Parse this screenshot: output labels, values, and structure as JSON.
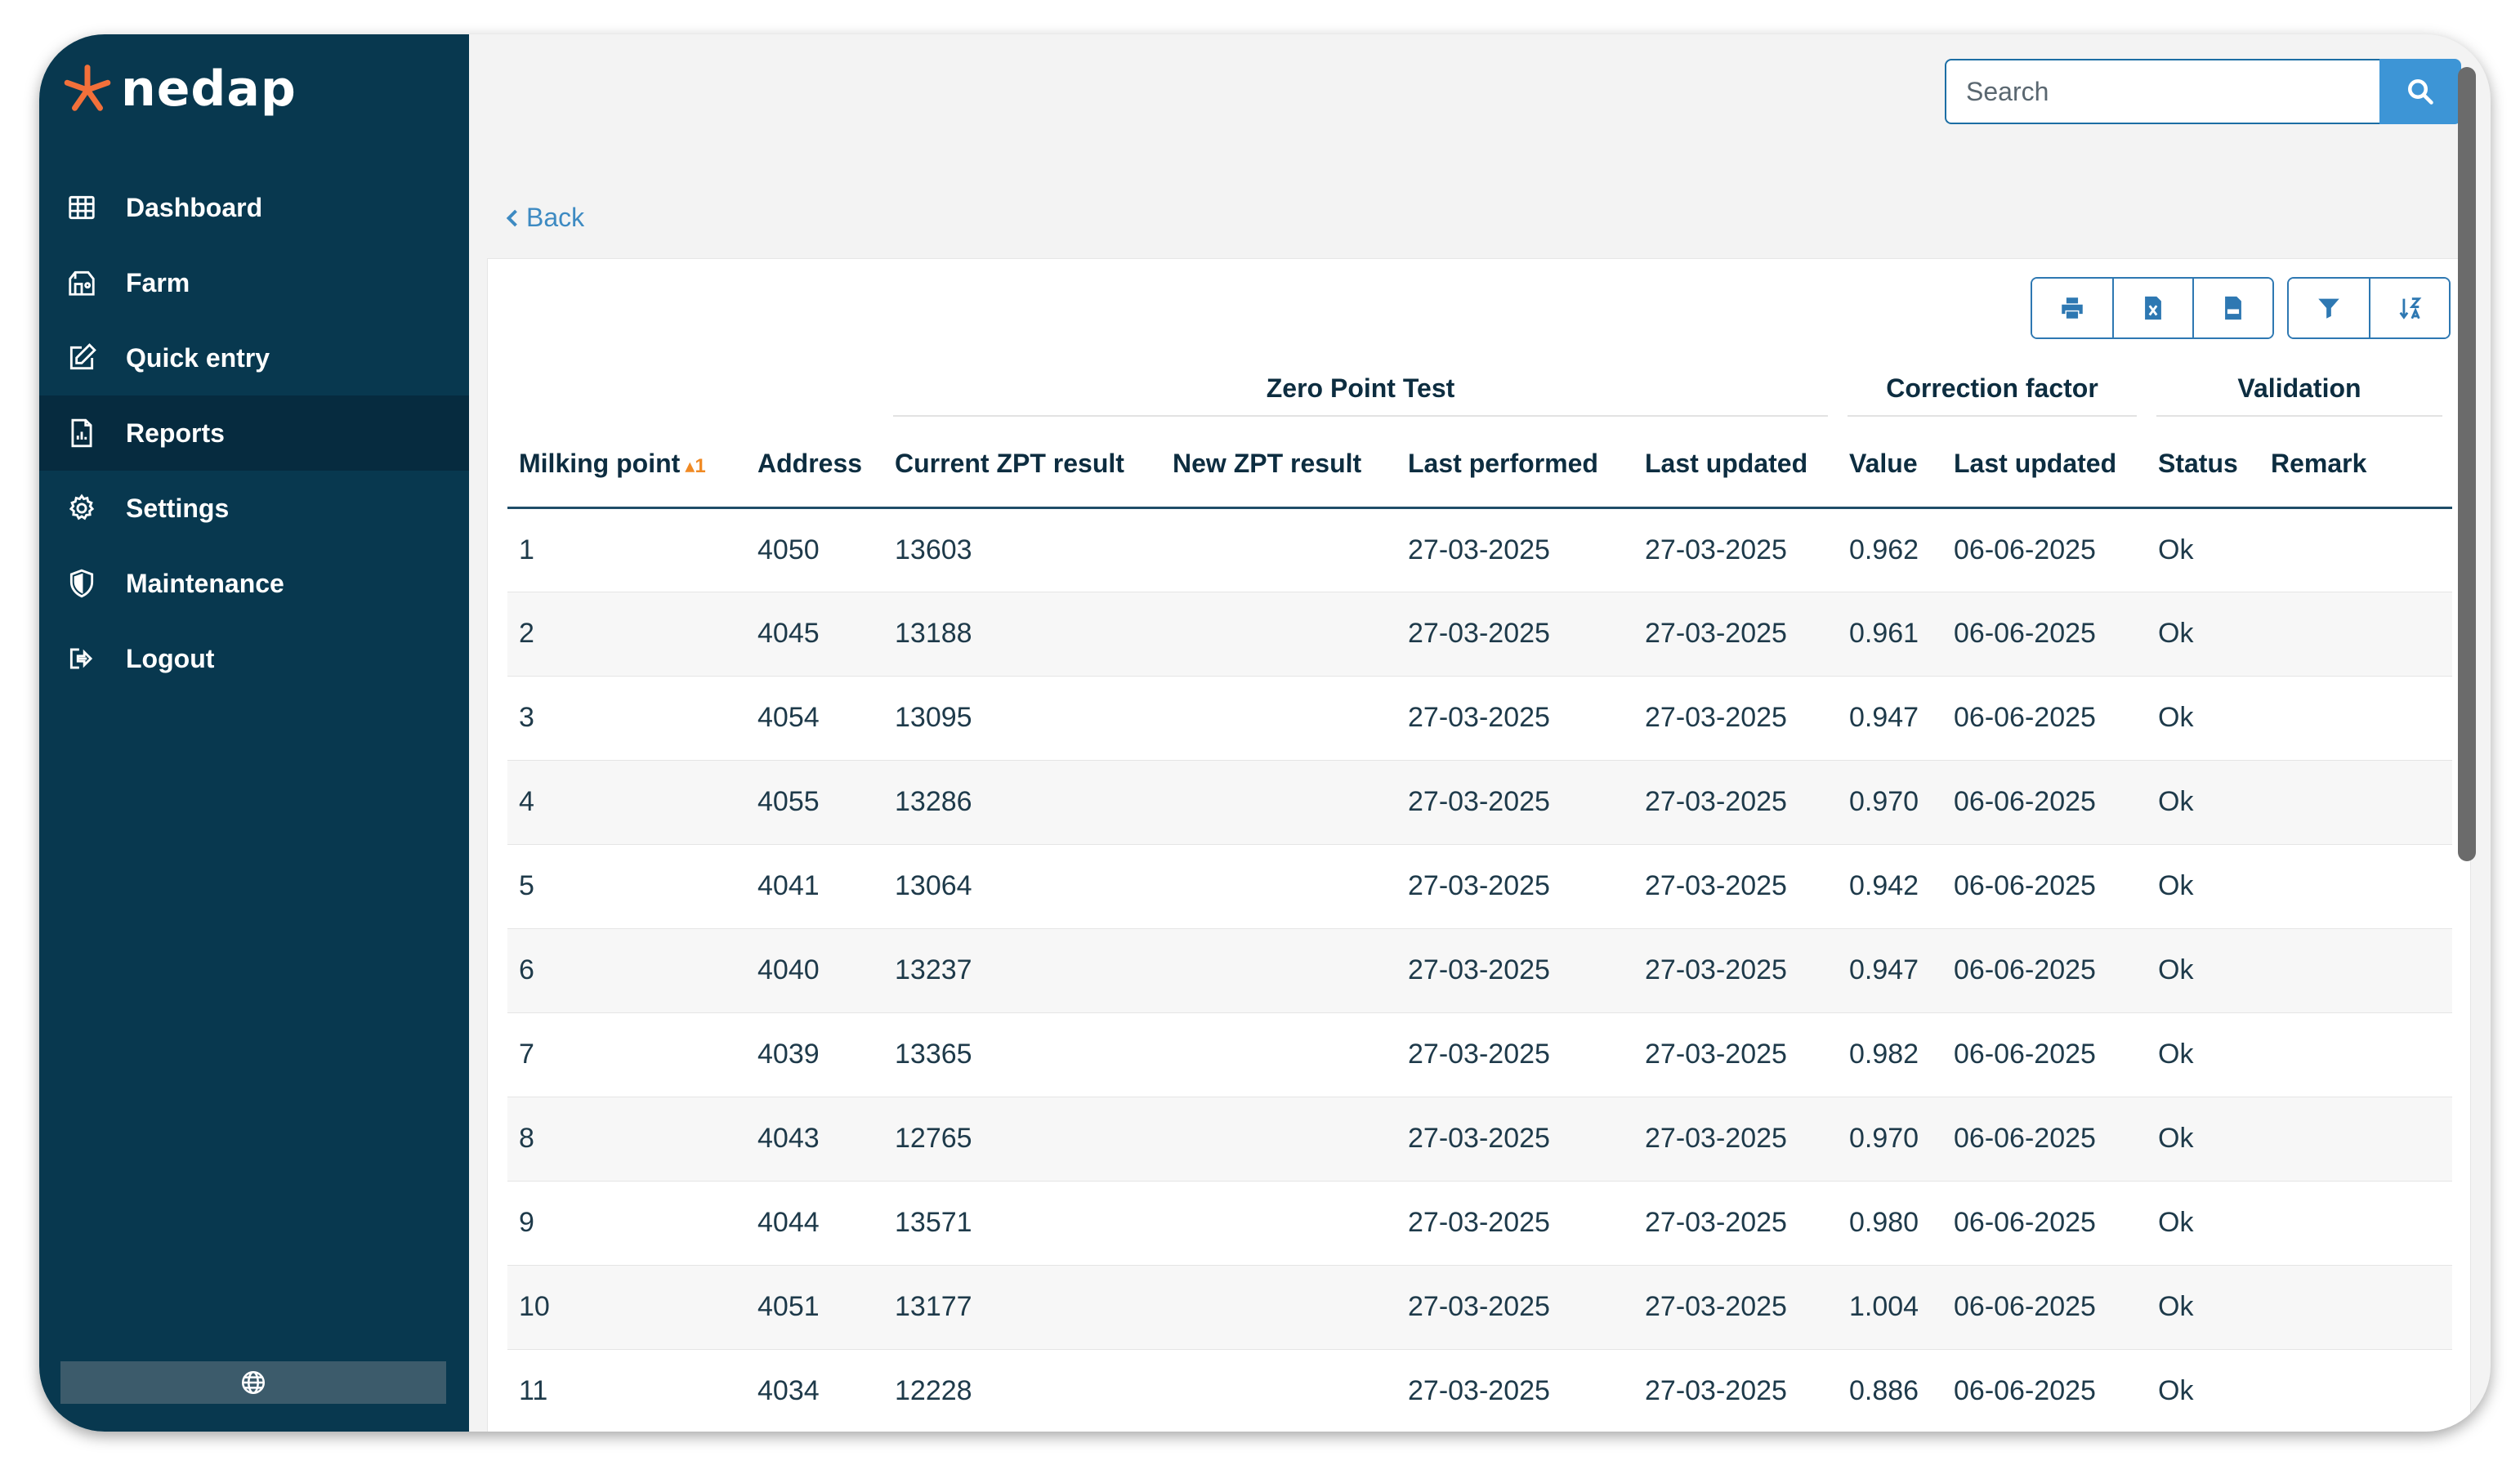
{
  "app": {
    "brand": "nedap"
  },
  "sidebar": {
    "items": [
      {
        "label": "Dashboard",
        "icon": "grid-icon"
      },
      {
        "label": "Farm",
        "icon": "farm-icon"
      },
      {
        "label": "Quick entry",
        "icon": "edit-icon"
      },
      {
        "label": "Reports",
        "icon": "report-icon",
        "active": true
      },
      {
        "label": "Settings",
        "icon": "gear-icon"
      },
      {
        "label": "Maintenance",
        "icon": "shield-icon"
      },
      {
        "label": "Logout",
        "icon": "logout-icon"
      }
    ],
    "language_icon": "globe-icon"
  },
  "search": {
    "placeholder": "Search",
    "value": ""
  },
  "back": {
    "label": "Back"
  },
  "toolbar": {
    "icons": [
      "print-icon",
      "excel-icon",
      "csv-icon",
      "filter-icon",
      "sort-icon"
    ]
  },
  "table": {
    "groups": {
      "zpt": "Zero Point Test",
      "correction": "Correction factor",
      "validation": "Validation"
    },
    "columns": {
      "milking_point": "Milking point",
      "sort_order": "1",
      "address": "Address",
      "current_zpt": "Current ZPT result",
      "new_zpt": "New ZPT result",
      "last_performed": "Last performed",
      "last_updated": "Last updated",
      "value": "Value",
      "cf_last_updated": "Last updated",
      "status": "Status",
      "remark": "Remark"
    },
    "rows": [
      [
        "1",
        "4050",
        "13603",
        "",
        "27-03-2025",
        "27-03-2025",
        "0.962",
        "06-06-2025",
        "Ok",
        ""
      ],
      [
        "2",
        "4045",
        "13188",
        "",
        "27-03-2025",
        "27-03-2025",
        "0.961",
        "06-06-2025",
        "Ok",
        ""
      ],
      [
        "3",
        "4054",
        "13095",
        "",
        "27-03-2025",
        "27-03-2025",
        "0.947",
        "06-06-2025",
        "Ok",
        ""
      ],
      [
        "4",
        "4055",
        "13286",
        "",
        "27-03-2025",
        "27-03-2025",
        "0.970",
        "06-06-2025",
        "Ok",
        ""
      ],
      [
        "5",
        "4041",
        "13064",
        "",
        "27-03-2025",
        "27-03-2025",
        "0.942",
        "06-06-2025",
        "Ok",
        ""
      ],
      [
        "6",
        "4040",
        "13237",
        "",
        "27-03-2025",
        "27-03-2025",
        "0.947",
        "06-06-2025",
        "Ok",
        ""
      ],
      [
        "7",
        "4039",
        "13365",
        "",
        "27-03-2025",
        "27-03-2025",
        "0.982",
        "06-06-2025",
        "Ok",
        ""
      ],
      [
        "8",
        "4043",
        "12765",
        "",
        "27-03-2025",
        "27-03-2025",
        "0.970",
        "06-06-2025",
        "Ok",
        ""
      ],
      [
        "9",
        "4044",
        "13571",
        "",
        "27-03-2025",
        "27-03-2025",
        "0.980",
        "06-06-2025",
        "Ok",
        ""
      ],
      [
        "10",
        "4051",
        "13177",
        "",
        "27-03-2025",
        "27-03-2025",
        "1.004",
        "06-06-2025",
        "Ok",
        ""
      ],
      [
        "11",
        "4034",
        "12228",
        "",
        "27-03-2025",
        "27-03-2025",
        "0.886",
        "06-06-2025",
        "Ok",
        ""
      ]
    ]
  },
  "colors": {
    "sidebar": "#08384f",
    "accent": "#3d95d6",
    "sort": "#f08a24"
  }
}
